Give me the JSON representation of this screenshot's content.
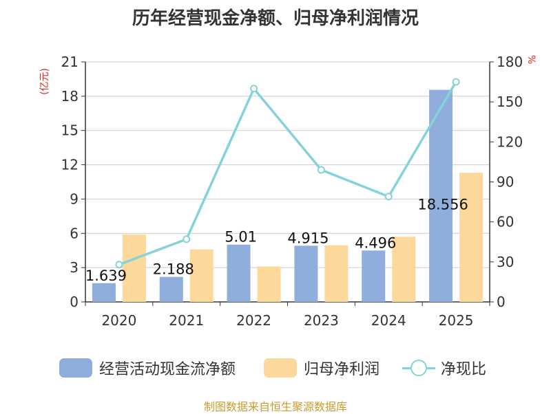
{
  "title": "历年经营现金净额、归母净利润情况",
  "unit_left": "(亿元)",
  "unit_right": "%",
  "source": "制图数据来自恒生聚源数据库",
  "colors": {
    "operating_cash": "#8faedb",
    "net_profit": "#fdd89b",
    "ratio_line": "#84d3d8",
    "unit_red": "#e0251b",
    "source_gold": "#c89c32"
  },
  "chart_data": {
    "type": "bar",
    "categories": [
      "2020",
      "2021",
      "2022",
      "2023",
      "2024",
      "2025"
    ],
    "series": [
      {
        "name": "经营活动现金流净额",
        "type": "bar",
        "axis": "left",
        "values": [
          1.639,
          2.188,
          5.01,
          4.915,
          4.496,
          18.556
        ],
        "data_labels": [
          "1.639",
          "2.188",
          "5.01",
          "4.915",
          "4.496",
          "18.556"
        ]
      },
      {
        "name": "归母净利润",
        "type": "bar",
        "axis": "left",
        "values": [
          5.9,
          4.6,
          3.1,
          4.95,
          5.7,
          11.3
        ]
      },
      {
        "name": "净现比",
        "type": "line",
        "axis": "right",
        "values": [
          28,
          47,
          160,
          99,
          79,
          165
        ]
      }
    ],
    "y_left": {
      "min": 0,
      "max": 21,
      "ticks": [
        "0",
        "3",
        "6",
        "9",
        "12",
        "15",
        "18",
        "21"
      ]
    },
    "y_right": {
      "min": 0,
      "max": 180,
      "ticks": [
        "0",
        "30",
        "60",
        "90",
        "120",
        "150",
        "180"
      ]
    },
    "grid": true,
    "legend_position": "bottom"
  }
}
